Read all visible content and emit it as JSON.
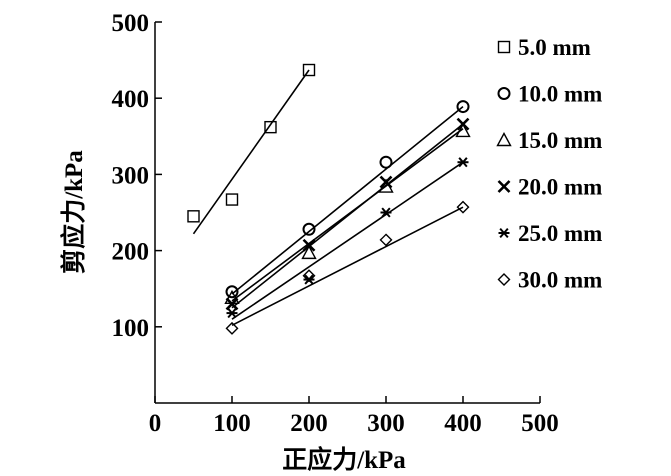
{
  "chart_data": {
    "type": "scatter",
    "xlabel": "正应力/kPa",
    "ylabel": "剪应力/kPa",
    "xlim": [
      0,
      500
    ],
    "ylim": [
      0,
      500
    ],
    "xticks": [
      0,
      100,
      200,
      300,
      400,
      500
    ],
    "yticks": [
      100,
      200,
      300,
      400,
      500
    ],
    "legend_position": "right",
    "grid": false,
    "series": [
      {
        "name": "5.0 mm",
        "marker": "square",
        "points": [
          [
            50,
            245
          ],
          [
            100,
            267
          ],
          [
            150,
            362
          ],
          [
            200,
            437
          ]
        ],
        "fit": [
          [
            50,
            222
          ],
          [
            200,
            437
          ]
        ]
      },
      {
        "name": "10.0 mm",
        "marker": "circle",
        "points": [
          [
            100,
            146
          ],
          [
            200,
            228
          ],
          [
            300,
            316
          ],
          [
            400,
            389
          ]
        ],
        "fit": [
          [
            100,
            143
          ],
          [
            400,
            389
          ]
        ]
      },
      {
        "name": "15.0 mm",
        "marker": "triangle",
        "points": [
          [
            100,
            138
          ],
          [
            200,
            197
          ],
          [
            300,
            284
          ],
          [
            400,
            357
          ]
        ],
        "fit": [
          [
            100,
            134
          ],
          [
            400,
            360
          ]
        ]
      },
      {
        "name": "20.0 mm",
        "marker": "x",
        "points": [
          [
            100,
            130
          ],
          [
            200,
            207
          ],
          [
            300,
            290
          ],
          [
            400,
            366
          ]
        ],
        "fit": [
          [
            100,
            125
          ],
          [
            400,
            366
          ]
        ]
      },
      {
        "name": "25.0 mm",
        "marker": "asterisk",
        "points": [
          [
            100,
            118
          ],
          [
            200,
            162
          ],
          [
            300,
            250
          ],
          [
            400,
            316
          ]
        ],
        "fit": [
          [
            100,
            110
          ],
          [
            400,
            316
          ]
        ]
      },
      {
        "name": "30.0 mm",
        "marker": "diamond",
        "points": [
          [
            100,
            98
          ],
          [
            200,
            167
          ],
          [
            300,
            214
          ],
          [
            400,
            257
          ]
        ],
        "fit": [
          [
            100,
            102
          ],
          [
            400,
            257
          ]
        ]
      }
    ]
  }
}
